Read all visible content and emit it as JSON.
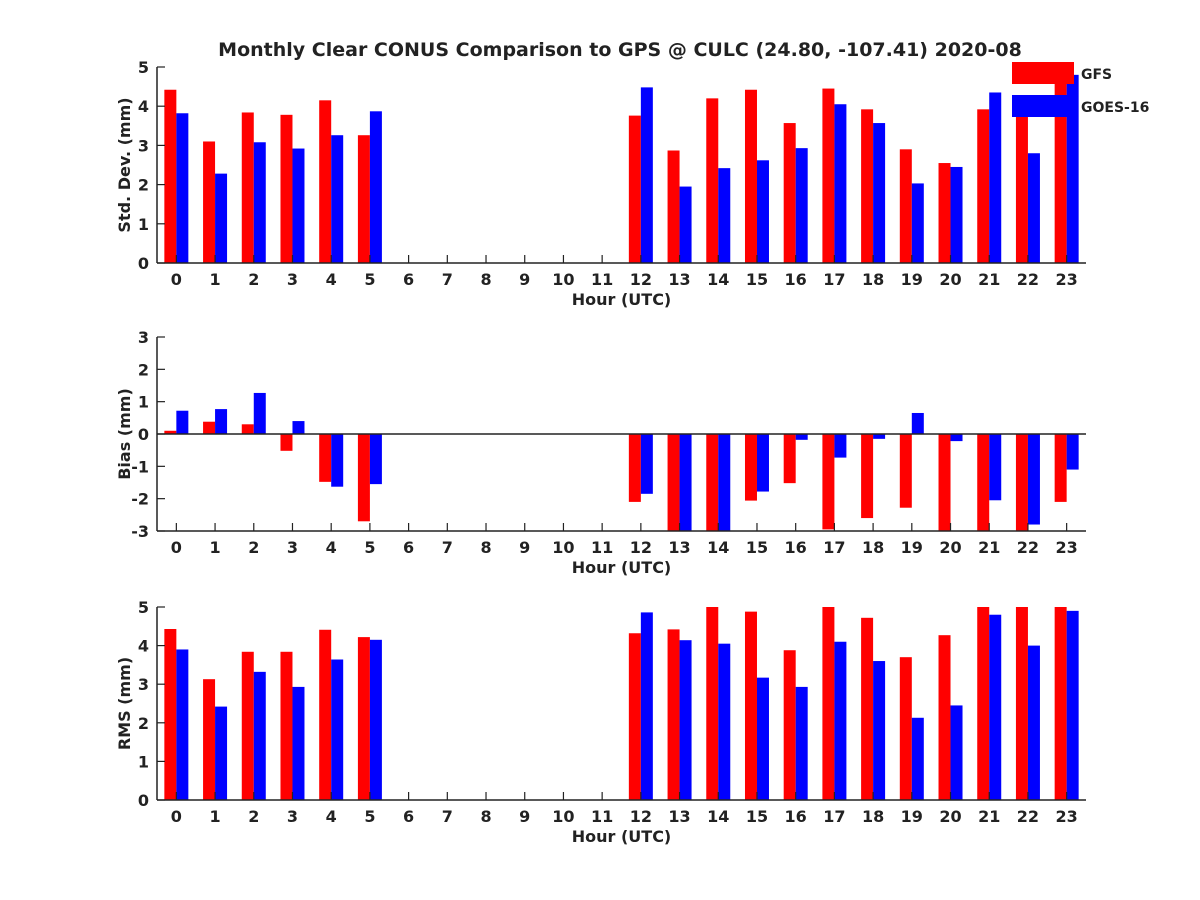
{
  "title": "Monthly Clear CONUS Comparison to GPS @ CULC (24.80, -107.41) 2020-08",
  "legend": {
    "placement": "top-right"
  },
  "colors": {
    "GFS": "#ff0000",
    "GOES-16": "#0000ff"
  },
  "chart_data": [
    {
      "type": "bar",
      "xlabel": "Hour (UTC)",
      "ylabel": "Std. Dev. (mm)",
      "ylim": [
        0,
        5
      ],
      "yticks": [
        0,
        1,
        2,
        3,
        4,
        5
      ],
      "categories": [
        "0",
        "1",
        "2",
        "3",
        "4",
        "5",
        "6",
        "7",
        "8",
        "9",
        "10",
        "11",
        "12",
        "13",
        "14",
        "15",
        "16",
        "17",
        "18",
        "19",
        "20",
        "21",
        "22",
        "23"
      ],
      "series": [
        {
          "name": "GFS",
          "values": [
            4.42,
            3.1,
            3.84,
            3.78,
            4.15,
            3.26,
            null,
            null,
            null,
            null,
            null,
            null,
            3.76,
            2.87,
            4.2,
            4.42,
            3.57,
            4.45,
            3.92,
            2.9,
            2.55,
            3.92,
            3.78,
            4.7
          ]
        },
        {
          "name": "GOES-16",
          "values": [
            3.82,
            2.28,
            3.08,
            2.92,
            3.26,
            3.87,
            null,
            null,
            null,
            null,
            null,
            null,
            4.48,
            1.95,
            2.42,
            2.62,
            2.93,
            4.05,
            3.57,
            2.03,
            2.45,
            4.35,
            2.8,
            4.8
          ]
        }
      ]
    },
    {
      "type": "bar",
      "xlabel": "Hour (UTC)",
      "ylabel": "Bias (mm)",
      "ylim": [
        -3,
        3
      ],
      "yticks": [
        -3,
        -2,
        -1,
        0,
        1,
        2,
        3
      ],
      "categories": [
        "0",
        "1",
        "2",
        "3",
        "4",
        "5",
        "6",
        "7",
        "8",
        "9",
        "10",
        "11",
        "12",
        "13",
        "14",
        "15",
        "16",
        "17",
        "18",
        "19",
        "20",
        "21",
        "22",
        "23"
      ],
      "series": [
        {
          "name": "GFS",
          "values": [
            0.1,
            0.38,
            0.3,
            -0.52,
            -1.48,
            -2.7,
            null,
            null,
            null,
            null,
            null,
            null,
            -2.1,
            -3.0,
            -3.0,
            -2.06,
            -1.52,
            -2.95,
            -2.6,
            -2.28,
            -3.0,
            -3.0,
            -3.0,
            -2.1
          ]
        },
        {
          "name": "GOES-16",
          "values": [
            0.72,
            0.77,
            1.27,
            0.4,
            -1.63,
            -1.55,
            null,
            null,
            null,
            null,
            null,
            null,
            -1.85,
            -3.0,
            -3.0,
            -1.78,
            -0.18,
            -0.73,
            -0.15,
            0.65,
            -0.22,
            -2.05,
            -2.8,
            -1.1
          ]
        }
      ]
    },
    {
      "type": "bar",
      "xlabel": "Hour (UTC)",
      "ylabel": "RMS (mm)",
      "ylim": [
        0,
        5
      ],
      "yticks": [
        0,
        1,
        2,
        3,
        4,
        5
      ],
      "categories": [
        "0",
        "1",
        "2",
        "3",
        "4",
        "5",
        "6",
        "7",
        "8",
        "9",
        "10",
        "11",
        "12",
        "13",
        "14",
        "15",
        "16",
        "17",
        "18",
        "19",
        "20",
        "21",
        "22",
        "23"
      ],
      "series": [
        {
          "name": "GFS",
          "values": [
            4.43,
            3.13,
            3.84,
            3.84,
            4.41,
            4.22,
            null,
            null,
            null,
            null,
            null,
            null,
            4.32,
            4.42,
            5.0,
            4.88,
            3.88,
            5.0,
            4.72,
            3.7,
            4.27,
            5.0,
            5.0,
            5.0
          ]
        },
        {
          "name": "GOES-16",
          "values": [
            3.9,
            2.42,
            3.32,
            2.93,
            3.64,
            4.15,
            null,
            null,
            null,
            null,
            null,
            null,
            4.86,
            4.14,
            4.05,
            3.17,
            2.93,
            4.1,
            3.6,
            2.13,
            2.45,
            4.8,
            4.0,
            4.9
          ]
        }
      ]
    }
  ]
}
